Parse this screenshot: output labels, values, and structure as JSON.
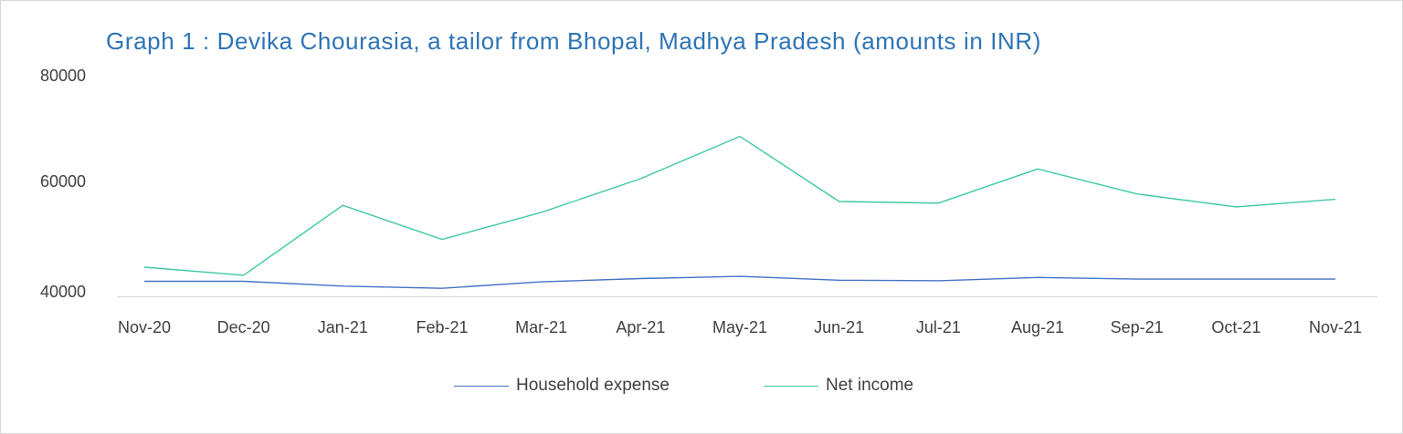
{
  "chart_data": {
    "type": "line",
    "title": "Graph 1 : Devika Chourasia, a tailor from Bhopal, Madhya Pradesh (amounts in INR)",
    "xlabel": "",
    "ylabel": "",
    "categories": [
      "Nov-20",
      "Dec-20",
      "Jan-21",
      "Feb-21",
      "Mar-21",
      "Apr-21",
      "May-21",
      "Jun-21",
      "Jul-21",
      "Aug-21",
      "Sep-21",
      "Oct-21",
      "Nov-21"
    ],
    "y_ticks": [
      "80000",
      "60000",
      "40000"
    ],
    "ylim": [
      39000,
      80000
    ],
    "grid": false,
    "legend_position": "bottom",
    "series": [
      {
        "name": "Household expense",
        "color": "#4472c4",
        "values": [
          41100,
          41100,
          40200,
          39800,
          41000,
          41600,
          42000,
          41300,
          41200,
          41800,
          41500,
          41500,
          41500
        ]
      },
      {
        "name": "Net income",
        "color": "#3fc8a6",
        "values": [
          43700,
          42200,
          55100,
          48800,
          53800,
          60000,
          67800,
          55800,
          55500,
          61800,
          57200,
          54800,
          56200
        ]
      }
    ]
  }
}
